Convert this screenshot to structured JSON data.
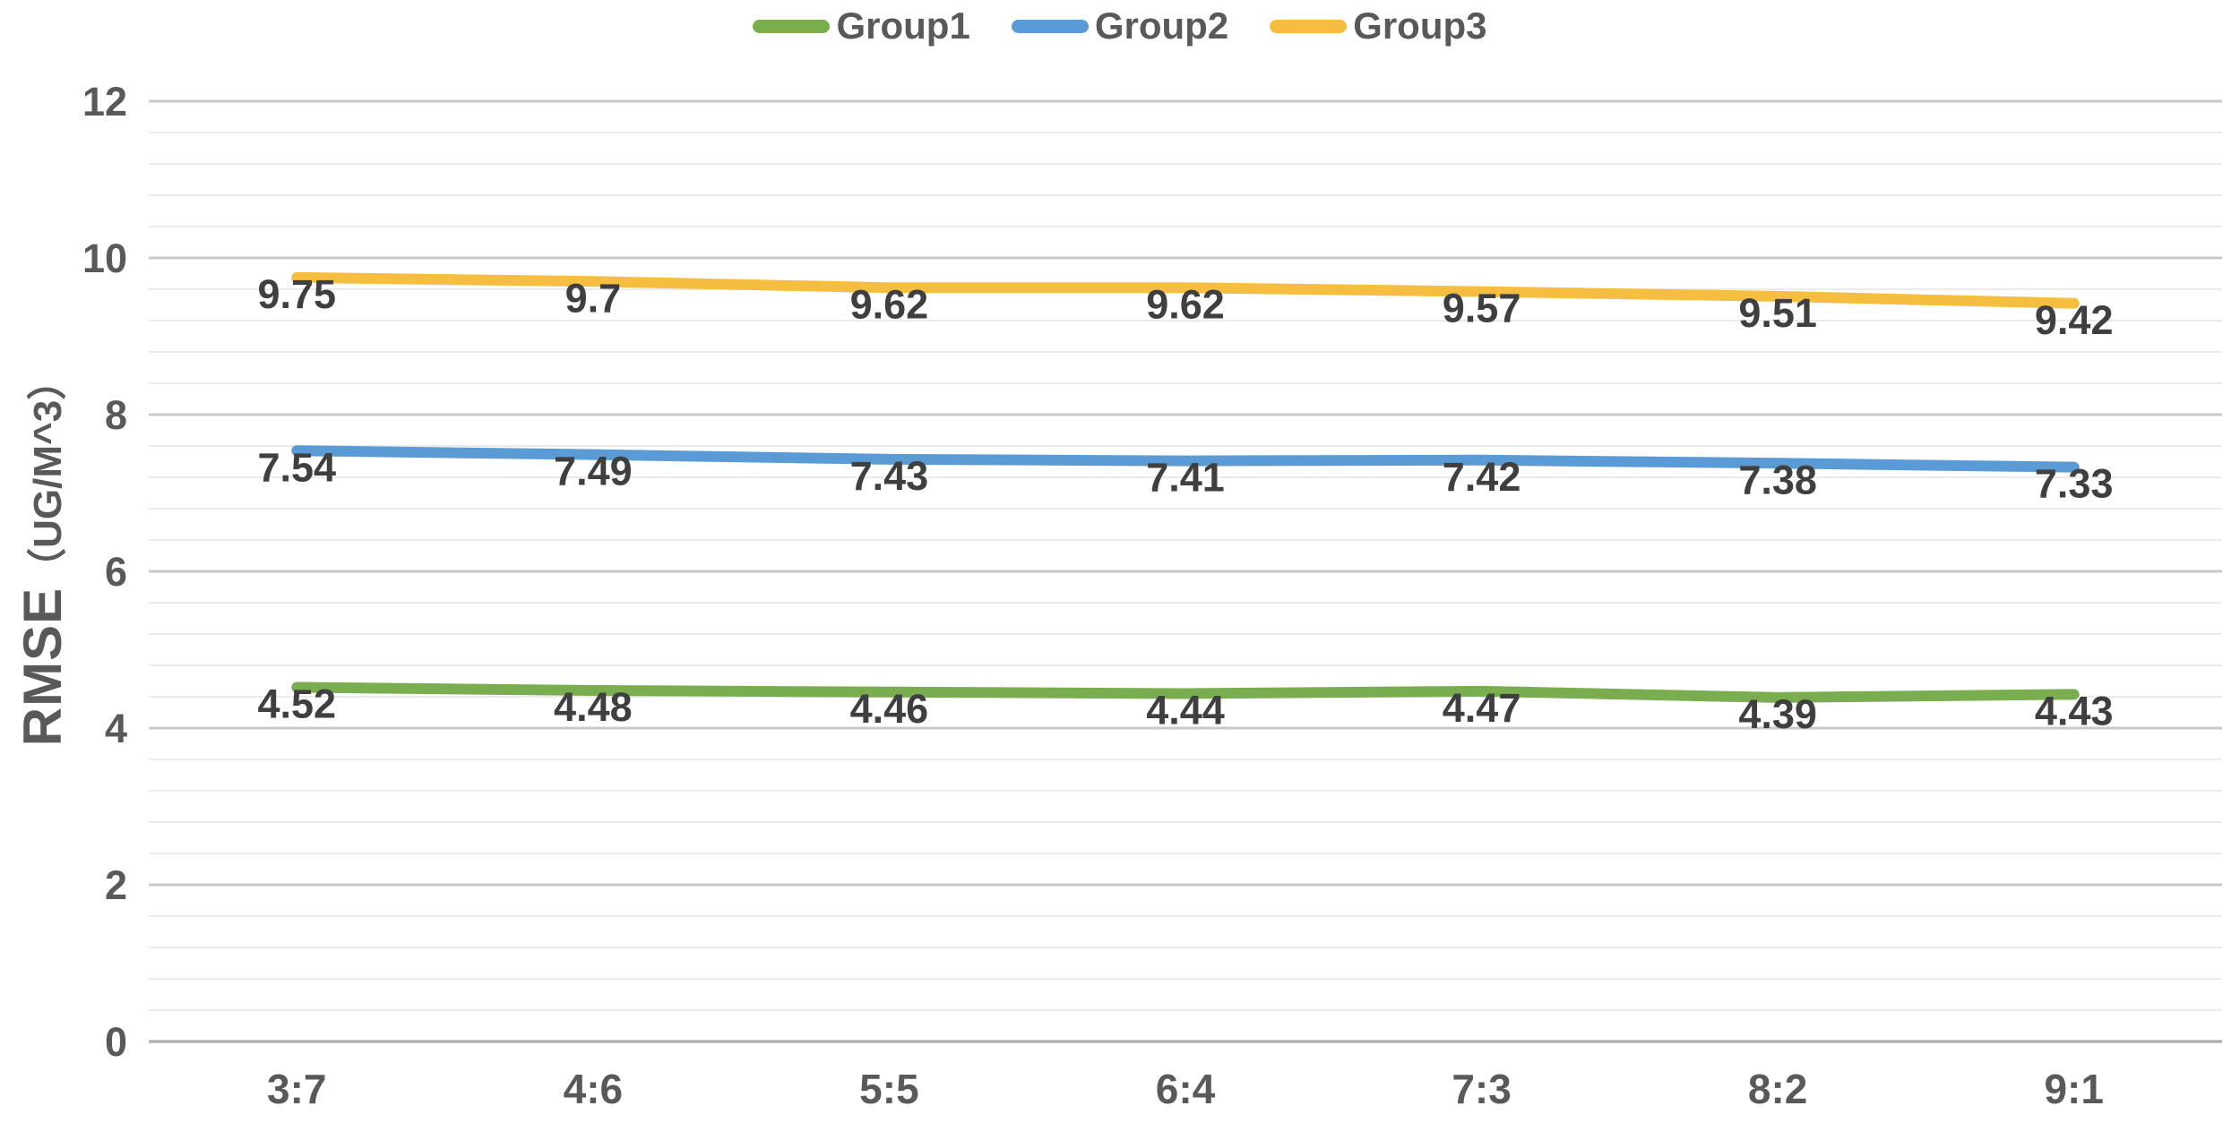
{
  "chart_data": {
    "type": "line",
    "title": "",
    "categories": [
      "3:7",
      "4:6",
      "5:5",
      "6:4",
      "7:3",
      "8:2",
      "9:1"
    ],
    "series": [
      {
        "name": "Group1",
        "color": "#7AAD4F",
        "values": [
          4.52,
          4.48,
          4.46,
          4.44,
          4.47,
          4.39,
          4.43
        ]
      },
      {
        "name": "Group2",
        "color": "#5B9BD5",
        "values": [
          7.54,
          7.49,
          7.43,
          7.41,
          7.42,
          7.38,
          7.33
        ]
      },
      {
        "name": "Group3",
        "color": "#F6BE41",
        "values": [
          9.75,
          9.7,
          9.62,
          9.62,
          9.57,
          9.51,
          9.42
        ]
      }
    ],
    "xlabel": "",
    "ylabel": "RMSE（UG/M^3）",
    "ylabel_main": "RMSE",
    "ylabel_unit": "（UG/M^3）",
    "ylim": [
      0,
      12
    ],
    "y_major_ticks": [
      0,
      2,
      4,
      6,
      8,
      10,
      12
    ],
    "y_minor_step": 0.4,
    "grid": true,
    "data_labels": true,
    "legend_position": "top"
  },
  "style_colors": {
    "grid_minor": "#ebebeb",
    "grid_major": "#c9c9c9",
    "axis_zero_line": "#b2b2b2",
    "tick_text": "#595959",
    "data_label_text": "#3f3f3f",
    "legend_text": "#595959",
    "axis_title_text": "#595959"
  }
}
